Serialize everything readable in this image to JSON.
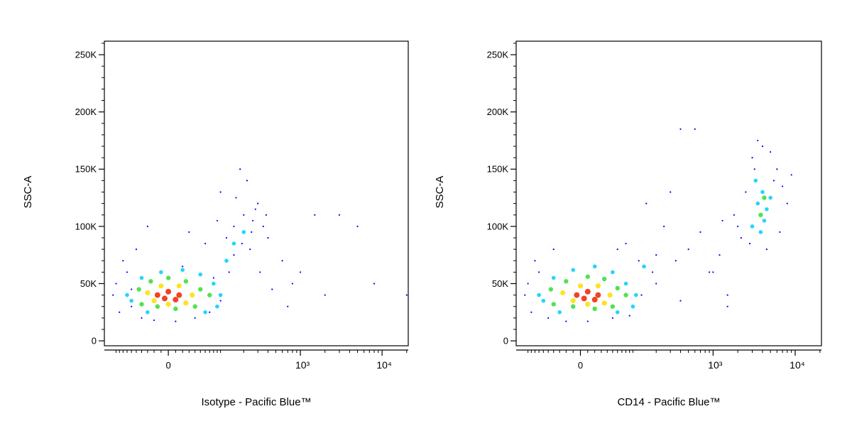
{
  "chart_data": [
    {
      "type": "scatter",
      "x_label": "Isotype - Pacific Blue™",
      "y_label": "SSC-A",
      "xscale": "biexponential",
      "linear_width": 48.5,
      "xlim": [
        -143,
        20900
      ],
      "ylim": [
        -4300,
        261800
      ],
      "xticks": [
        0,
        {
          "value": 1000,
          "label": "10³"
        },
        {
          "value": 10000,
          "label": "10⁴"
        }
      ],
      "xminor_ticks": [
        -100,
        -90,
        -80,
        -70,
        -60,
        -50,
        -40,
        -30,
        -20,
        -10,
        10,
        20,
        30,
        40,
        50,
        60,
        70,
        80,
        90,
        100,
        200,
        300,
        400,
        500,
        600,
        700,
        800,
        900,
        2000,
        3000,
        4000,
        5000,
        6000,
        7000,
        8000,
        9000,
        20000
      ],
      "yticks": [
        0,
        {
          "value": 50000,
          "label": "50K"
        },
        {
          "value": 100000,
          "label": "100K"
        },
        {
          "value": 150000,
          "label": "150K"
        },
        {
          "value": 200000,
          "label": "200K"
        },
        {
          "value": 250000,
          "label": "250K"
        }
      ],
      "yminor_ticks": [
        10000,
        20000,
        30000,
        40000,
        60000,
        70000,
        80000,
        90000,
        110000,
        120000,
        130000,
        140000,
        160000,
        170000,
        180000,
        190000,
        210000,
        220000,
        230000,
        240000,
        260000
      ],
      "series": [
        {
          "color": "#0000ff",
          "x": [
            -110,
            -90,
            -70,
            -60,
            -40,
            -20,
            10,
            40,
            70,
            100,
            130,
            -80,
            -50,
            60,
            150,
            200,
            250,
            300,
            400,
            600,
            800,
            1500,
            3000,
            8000,
            20000,
            100,
            180,
            220,
            280,
            350,
            150,
            90,
            -100,
            -30,
            30,
            120,
            160,
            240,
            320,
            450,
            700,
            1000,
            2000,
            5000,
            -60,
            20,
            80,
            190,
            260,
            380
          ],
          "y": [
            40000,
            25000,
            60000,
            30000,
            20000,
            18000,
            17000,
            20000,
            25000,
            35000,
            60000,
            70000,
            80000,
            85000,
            100000,
            110000,
            95000,
            120000,
            90000,
            70000,
            50000,
            110000,
            110000,
            50000,
            40000,
            130000,
            150000,
            140000,
            115000,
            100000,
            75000,
            105000,
            50000,
            100000,
            95000,
            90000,
            125000,
            80000,
            60000,
            45000,
            30000,
            60000,
            40000,
            100000,
            45000,
            65000,
            55000,
            85000,
            105000,
            110000
          ]
        },
        {
          "color": "#00ccff",
          "x": [
            -60,
            -40,
            -10,
            20,
            50,
            80,
            100,
            -70,
            -30,
            60,
            90,
            120,
            150,
            200
          ],
          "y": [
            35000,
            55000,
            60000,
            62000,
            58000,
            50000,
            40000,
            40000,
            25000,
            25000,
            30000,
            70000,
            85000,
            95000
          ]
        },
        {
          "color": "#33dd33",
          "x": [
            -45,
            -25,
            0,
            25,
            50,
            70,
            -40,
            40,
            10,
            -15
          ],
          "y": [
            45000,
            52000,
            55000,
            52000,
            45000,
            40000,
            32000,
            30000,
            28000,
            30000
          ]
        },
        {
          "color": "#ffdd00",
          "x": [
            -30,
            -10,
            15,
            35,
            -20,
            25,
            0
          ],
          "y": [
            42000,
            48000,
            48000,
            40000,
            35000,
            33000,
            32000
          ]
        },
        {
          "color": "#ee2200",
          "x": [
            -15,
            0,
            15,
            -5,
            10
          ],
          "y": [
            40000,
            43000,
            40000,
            37000,
            36000
          ]
        }
      ]
    },
    {
      "type": "scatter",
      "x_label": "CD14 - Pacific Blue™",
      "y_label": "SSC-A",
      "xscale": "biexponential",
      "linear_width": 48.5,
      "xlim": [
        -143,
        20900
      ],
      "ylim": [
        -4300,
        261800
      ],
      "xticks": [
        0,
        {
          "value": 1000,
          "label": "10³"
        },
        {
          "value": 10000,
          "label": "10⁴"
        }
      ],
      "xminor_ticks": [
        -100,
        -90,
        -80,
        -70,
        -60,
        -50,
        -40,
        -30,
        -20,
        -10,
        10,
        20,
        30,
        40,
        50,
        60,
        70,
        80,
        90,
        100,
        200,
        300,
        400,
        500,
        600,
        700,
        800,
        900,
        2000,
        3000,
        4000,
        5000,
        6000,
        7000,
        8000,
        9000,
        20000
      ],
      "yticks": [
        0,
        {
          "value": 50000,
          "label": "50K"
        },
        {
          "value": 100000,
          "label": "100K"
        },
        {
          "value": 150000,
          "label": "150K"
        },
        {
          "value": 200000,
          "label": "200K"
        },
        {
          "value": 250000,
          "label": "250K"
        }
      ],
      "yminor_ticks": [
        10000,
        20000,
        30000,
        40000,
        60000,
        70000,
        80000,
        90000,
        110000,
        120000,
        130000,
        140000,
        160000,
        170000,
        180000,
        190000,
        210000,
        220000,
        230000,
        240000,
        260000
      ],
      "series": [
        {
          "color": "#0000ff",
          "x": [
            -110,
            -90,
            -70,
            -50,
            -20,
            10,
            50,
            90,
            130,
            180,
            -80,
            -40,
            80,
            200,
            250,
            350,
            500,
            700,
            900,
            1200,
            1500,
            300,
            400,
            600,
            150,
            200,
            400,
            -100,
            60,
            120,
            2000,
            2500,
            3000,
            3500,
            4000,
            5000,
            6000,
            7000,
            8000,
            2200,
            2800,
            4500,
            6500,
            3200,
            5500,
            1800,
            1300,
            1000,
            9000,
            1500
          ],
          "y": [
            40000,
            25000,
            60000,
            20000,
            17000,
            17000,
            20000,
            22000,
            40000,
            60000,
            70000,
            80000,
            85000,
            75000,
            100000,
            70000,
            80000,
            95000,
            60000,
            75000,
            40000,
            130000,
            185000,
            185000,
            120000,
            50000,
            35000,
            50000,
            80000,
            70000,
            100000,
            130000,
            160000,
            175000,
            170000,
            165000,
            150000,
            135000,
            120000,
            90000,
            85000,
            80000,
            95000,
            150000,
            140000,
            110000,
            105000,
            60000,
            145000,
            30000
          ]
        },
        {
          "color": "#00ccff",
          "x": [
            -60,
            -40,
            -10,
            20,
            50,
            80,
            110,
            -70,
            -30,
            60,
            100,
            140,
            3000,
            3500,
            4000,
            4500,
            3800,
            4200,
            3300,
            5000
          ],
          "y": [
            35000,
            55000,
            62000,
            65000,
            60000,
            50000,
            40000,
            40000,
            25000,
            25000,
            30000,
            65000,
            100000,
            120000,
            130000,
            115000,
            95000,
            105000,
            140000,
            125000
          ]
        },
        {
          "color": "#33dd33",
          "x": [
            -45,
            -20,
            10,
            35,
            60,
            80,
            -40,
            50,
            20,
            -10,
            3800,
            4200
          ],
          "y": [
            45000,
            52000,
            56000,
            54000,
            46000,
            40000,
            32000,
            30000,
            28000,
            30000,
            110000,
            125000
          ]
        },
        {
          "color": "#ffdd00",
          "x": [
            -25,
            0,
            25,
            45,
            -10,
            35,
            10
          ],
          "y": [
            42000,
            48000,
            48000,
            40000,
            35000,
            33000,
            32000
          ]
        },
        {
          "color": "#ee2200",
          "x": [
            -5,
            10,
            25,
            5,
            20
          ],
          "y": [
            40000,
            43000,
            40000,
            37000,
            36000
          ]
        }
      ]
    }
  ]
}
